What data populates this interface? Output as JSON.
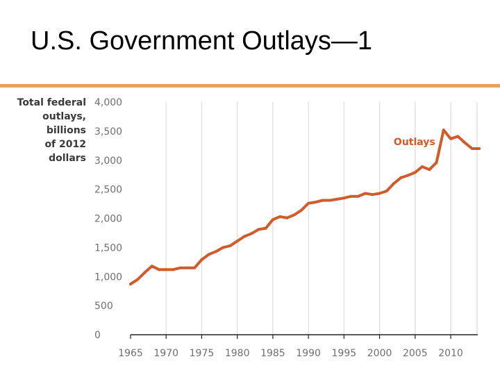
{
  "slide": {
    "title": "U.S. Government Outlays—1",
    "accent_color": "#e8a15a"
  },
  "chart_data": {
    "type": "line",
    "ylabel_lines": [
      "Total federal",
      "outlays,",
      "billions",
      "of 2012",
      "dollars"
    ],
    "xlim": [
      1965,
      2014
    ],
    "ylim": [
      0,
      4000
    ],
    "x_ticks": [
      1965,
      1970,
      1975,
      1980,
      1985,
      1990,
      1995,
      2000,
      2005,
      2010
    ],
    "y_ticks": [
      0,
      500,
      1000,
      1500,
      2000,
      2500,
      3000,
      3500,
      4000
    ],
    "y_tick_labels": [
      "0",
      "500",
      "1,000",
      "1,500",
      "2,000",
      "2,500",
      "3,000",
      "3,500",
      "4,000"
    ],
    "grid": "vertical",
    "series": [
      {
        "name": "Outlays",
        "color": "#d15b2b",
        "x": [
          1965,
          1966,
          1967,
          1968,
          1969,
          1970,
          1971,
          1972,
          1973,
          1974,
          1975,
          1976,
          1977,
          1978,
          1979,
          1980,
          1981,
          1982,
          1983,
          1984,
          1985,
          1986,
          1987,
          1988,
          1989,
          1990,
          1991,
          1992,
          1993,
          1994,
          1995,
          1996,
          1997,
          1998,
          1999,
          2000,
          2001,
          2002,
          2003,
          2004,
          2005,
          2006,
          2007,
          2008,
          2009,
          2010,
          2011,
          2012,
          2013,
          2014
        ],
        "y": [
          870,
          950,
          1070,
          1180,
          1120,
          1120,
          1120,
          1150,
          1150,
          1150,
          1290,
          1380,
          1430,
          1500,
          1530,
          1610,
          1690,
          1740,
          1810,
          1830,
          1980,
          2030,
          2010,
          2060,
          2140,
          2260,
          2280,
          2310,
          2310,
          2330,
          2350,
          2380,
          2380,
          2430,
          2410,
          2430,
          2470,
          2600,
          2700,
          2740,
          2790,
          2890,
          2840,
          2960,
          3520,
          3370,
          3410,
          3300,
          3200,
          3200
        ]
      }
    ]
  }
}
